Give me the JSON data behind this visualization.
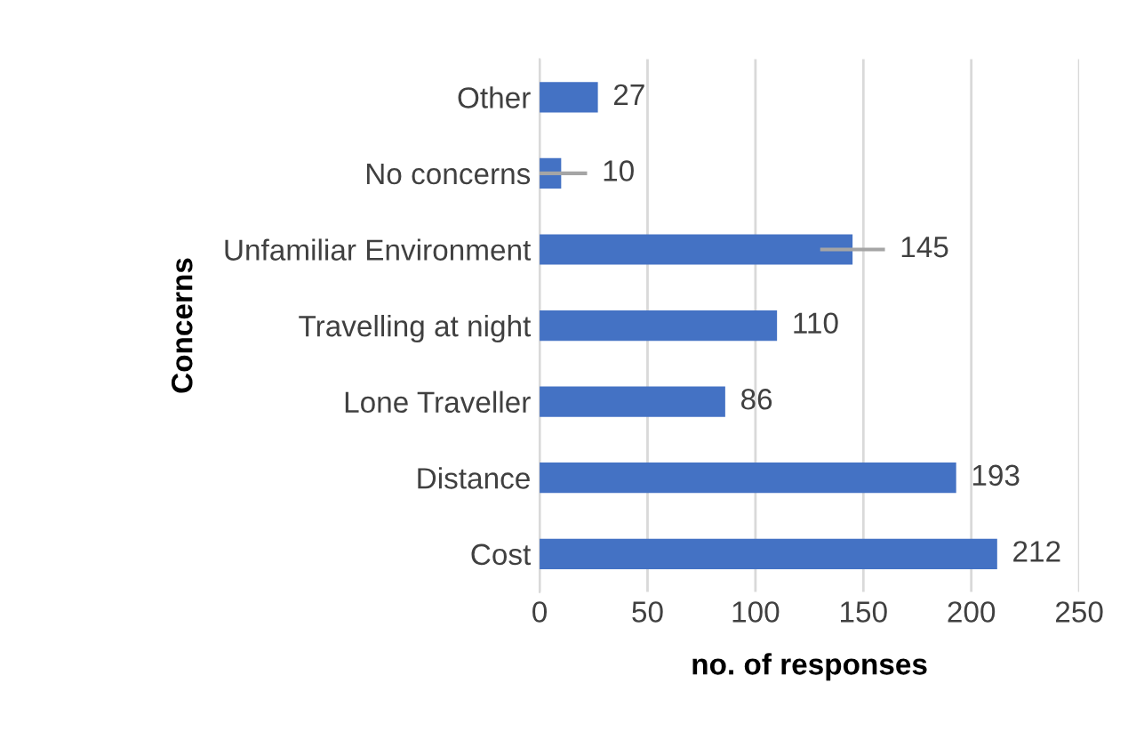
{
  "chart_data": {
    "type": "bar",
    "orientation": "horizontal",
    "xlabel": "no. of responses",
    "ylabel": "Concerns",
    "categories": [
      "Other",
      "No concerns",
      "Unfamiliar Environment",
      "Travelling at night",
      "Lone Traveller",
      "Distance",
      "Cost"
    ],
    "values": [
      27,
      10,
      145,
      110,
      86,
      193,
      212
    ],
    "errors": [
      null,
      12,
      15,
      null,
      null,
      null,
      null
    ],
    "color": "#4472c4",
    "data_labels": true,
    "xlim": [
      0,
      250
    ],
    "xticks": [
      0,
      50,
      100,
      150,
      200,
      250
    ],
    "grid": "x"
  }
}
